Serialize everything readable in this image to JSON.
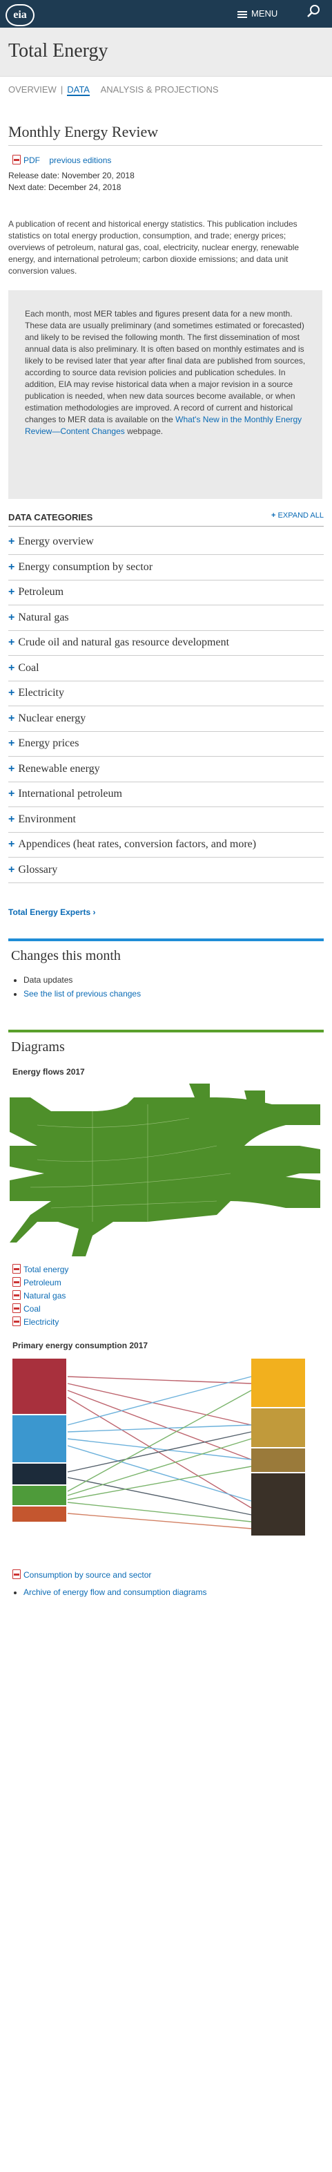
{
  "header": {
    "logo": "eia",
    "menu_label": "MENU"
  },
  "page": {
    "title": "Total Energy"
  },
  "tabs": [
    {
      "label": "OVERVIEW"
    },
    {
      "label": "DATA"
    },
    {
      "label": "ANALYSIS & PROJECTIONS"
    }
  ],
  "mer": {
    "title": "Monthly Energy Review",
    "pdf_label": "PDF",
    "prev_label": "previous editions",
    "release": "Release date: November 20, 2018",
    "next": "Next date: December 24, 2018",
    "intro": "A publication of recent and historical energy statistics. This publication includes statistics on total energy production, consumption, and trade; energy prices; overviews of petroleum, natural gas, coal, electricity, nuclear energy, renewable energy, and international petroleum; carbon dioxide emissions; and data unit conversion values.",
    "note_text": "Each month, most MER tables and figures present data for a new month. These data are usually preliminary (and sometimes estimated or forecasted) and likely to be revised the following month. The first dissemination of most annual data is also preliminary. It is often based on monthly estimates and is likely to be revised later that year after final data are published from sources, according to source data revision policies and publication schedules. In addition, EIA may revise historical data when a major revision in a source publication is needed, when new data sources become available, or when estimation methodologies are improved. A record of current and historical changes to MER data is available on the ",
    "note_link": "What's New in the Monthly Energy Review—Content Changes",
    "note_end": " webpage."
  },
  "categories": {
    "heading": "DATA CATEGORIES",
    "expand_label": "EXPAND ALL",
    "items": [
      "Energy overview",
      "Energy consumption by sector",
      "Petroleum",
      "Natural gas",
      "Crude oil and natural gas resource development",
      "Coal",
      "Electricity",
      "Nuclear energy",
      "Energy prices",
      "Renewable energy",
      "International petroleum",
      "Environment",
      "Appendices (heat rates, conversion factors, and more)",
      "Glossary"
    ]
  },
  "experts_link": "Total Energy Experts ›",
  "changes": {
    "title": "Changes this month",
    "items": [
      "Data updates",
      "See the list of previous changes"
    ]
  },
  "diagrams": {
    "title": "Diagrams",
    "flows_title": "Energy flows 2017",
    "flows_links": [
      "Total energy",
      "Petroleum",
      "Natural gas",
      "Coal",
      "Electricity"
    ],
    "primary_title": "Primary energy consumption 2017",
    "primary_link": "Consumption by source and sector",
    "archive_link": "Archive of energy flow and consumption diagrams"
  },
  "colors": {
    "header_bg": "#1e3b52",
    "link": "#0b6bb5",
    "changes_bar": "#1f8dd6",
    "diagrams_bar": "#5aa02c",
    "flow_green": "#4e8f2a"
  }
}
